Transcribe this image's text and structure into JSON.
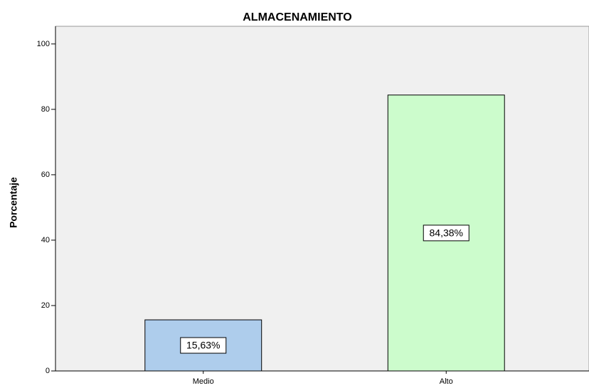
{
  "chart_data": {
    "type": "bar",
    "title": "ALMACENAMIENTO",
    "y_label": "Porcentaje",
    "categories": [
      "Medio",
      "Alto"
    ],
    "values": [
      15.63,
      84.38
    ],
    "value_labels": [
      "15,63%",
      "84,38%"
    ],
    "colors": [
      "#aecdec",
      "#ccfccc"
    ],
    "ylim": [
      0,
      105.4
    ],
    "yticks": [
      0,
      20,
      40,
      60,
      80,
      100
    ],
    "grid": false
  }
}
